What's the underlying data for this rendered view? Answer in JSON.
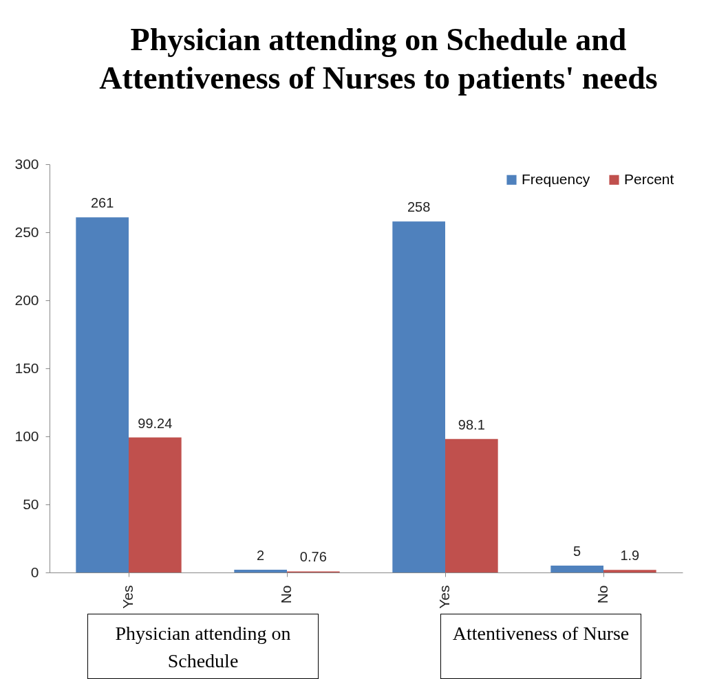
{
  "chart_data": {
    "type": "bar",
    "title": "Physician attending on Schedule and Attentiveness of Nurses to patients' needs",
    "categories": [
      "Yes",
      "No",
      "Yes",
      "No"
    ],
    "series": [
      {
        "name": "Frequency",
        "color": "#4f81bd",
        "values": [
          261,
          2,
          258,
          5
        ]
      },
      {
        "name": "Percent",
        "color": "#c0504d",
        "values": [
          99.24,
          0.76,
          98.1,
          1.9
        ]
      }
    ],
    "ylim": [
      0,
      300
    ],
    "yticks": [
      0,
      50,
      100,
      150,
      200,
      250,
      300
    ],
    "grid": false,
    "legend": "top right",
    "data_labels": true,
    "annotations": [
      "Physician attending on Schedule",
      "Attentiveness of Nurse"
    ]
  }
}
